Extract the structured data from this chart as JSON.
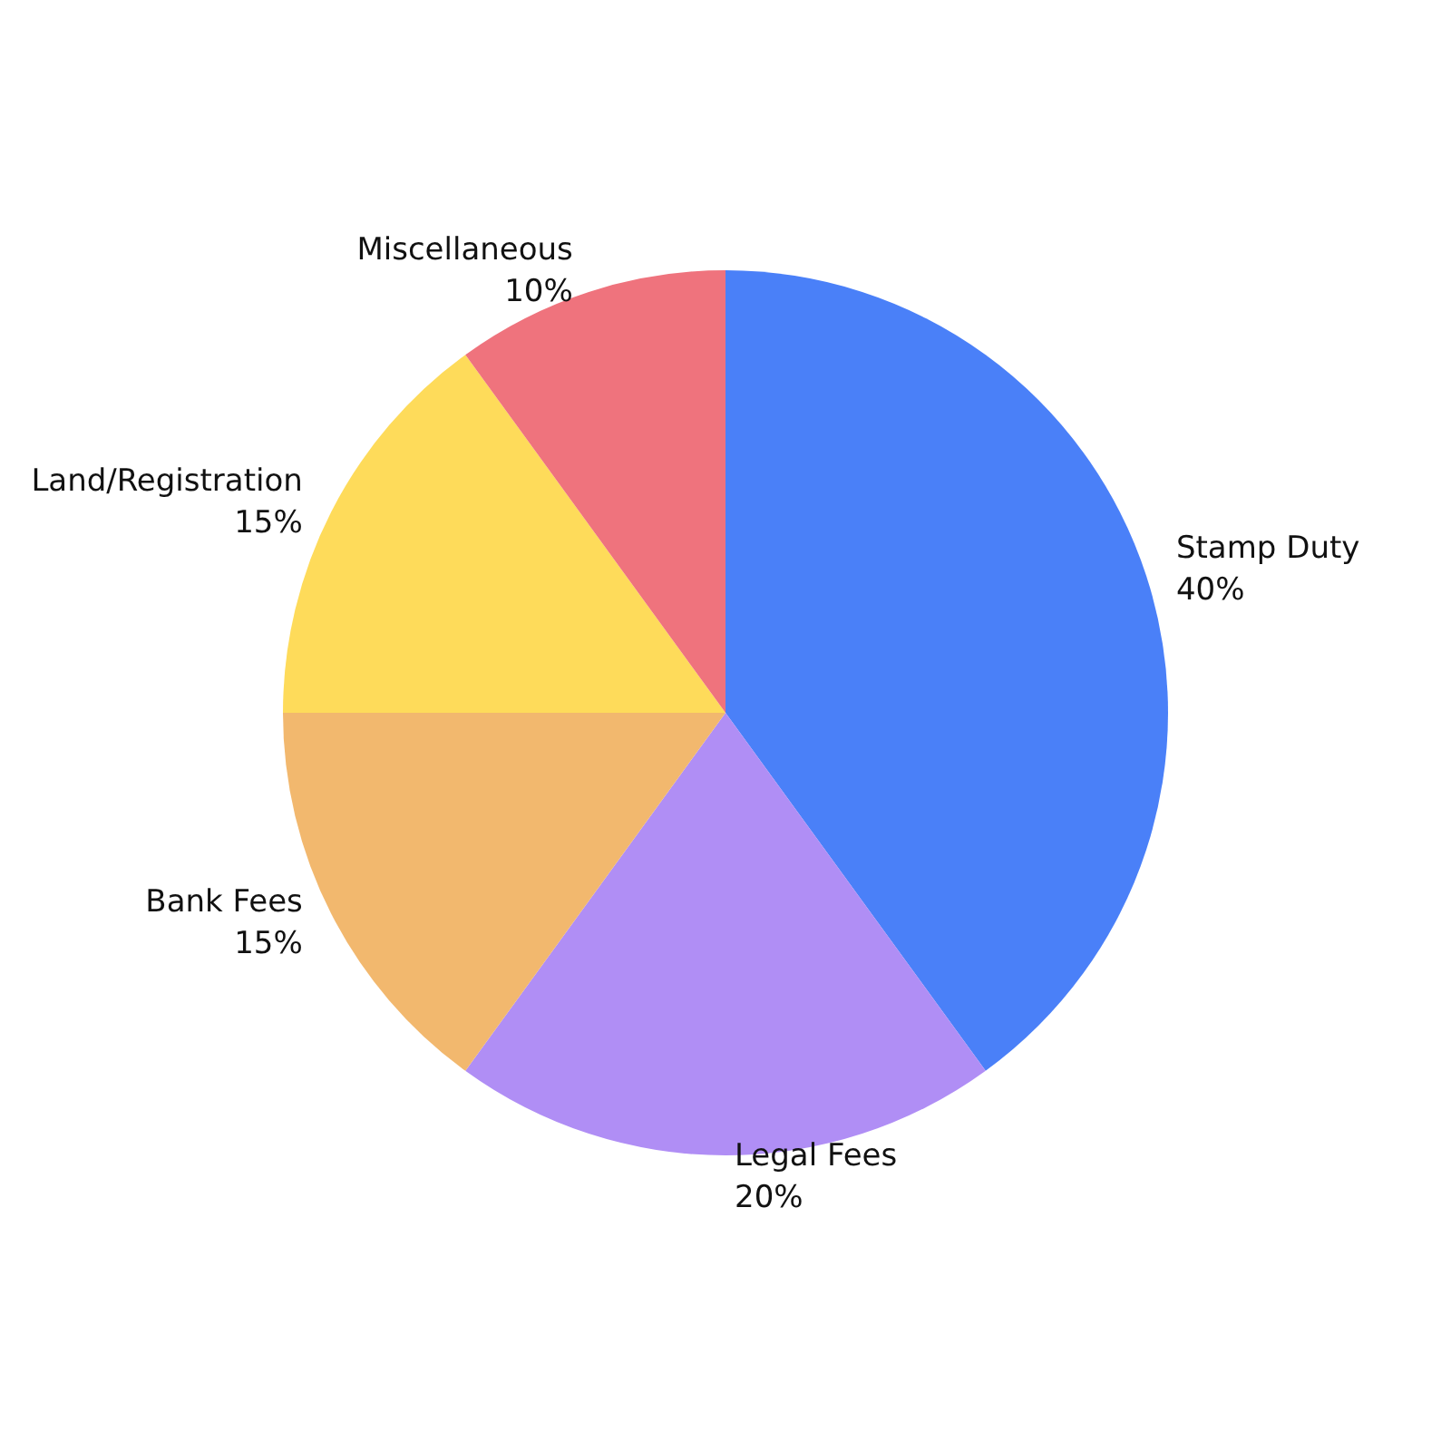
{
  "chart_data": {
    "type": "pie",
    "categories": [
      "Stamp Duty",
      "Legal Fees",
      "Bank Fees",
      "Land/Registration",
      "Miscellaneous"
    ],
    "values": [
      40,
      20,
      15,
      15,
      10
    ],
    "colors": [
      "#4a80f8",
      "#b08ef5",
      "#f2b86e",
      "#fedb5a",
      "#ef737d"
    ],
    "value_labels": [
      "40%",
      "20%",
      "15%",
      "15%",
      "10%"
    ],
    "legend": false
  }
}
